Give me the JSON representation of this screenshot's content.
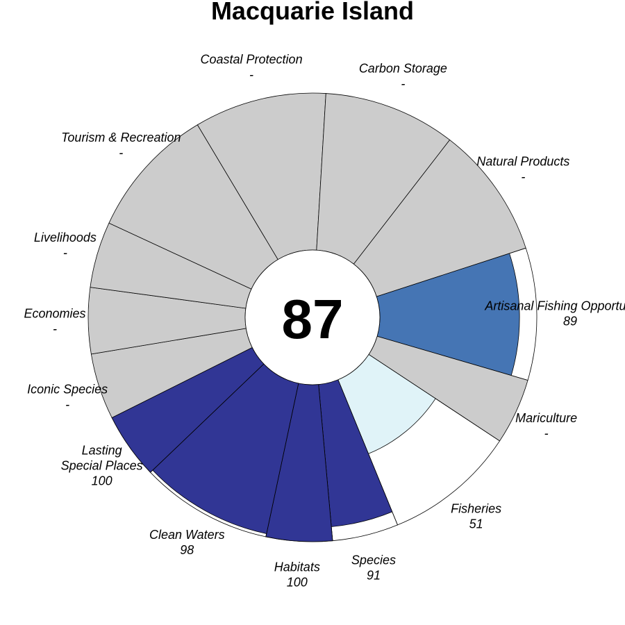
{
  "chart_data": {
    "type": "flower",
    "title": "Macquarie Island",
    "center_score": "87",
    "max_value": 100,
    "petals": [
      {
        "name": "Artisanal Fishing Opportunities",
        "value_label": "89",
        "value": 89,
        "weight": 1,
        "color": "#4575b4"
      },
      {
        "name": "Mariculture",
        "value_label": "-",
        "value": null,
        "weight": 0.5,
        "color": "#74add1"
      },
      {
        "name": "Fisheries",
        "value_label": "51",
        "value": 51,
        "weight": 1,
        "color": "#e0f3f8"
      },
      {
        "name": "Species",
        "value_label": "91",
        "value": 91,
        "weight": 0.5,
        "color": "#313695"
      },
      {
        "name": "Habitats",
        "value_label": "100",
        "value": 100,
        "weight": 0.5,
        "color": "#313695"
      },
      {
        "name": "Clean Waters",
        "value_label": "98",
        "value": 98,
        "weight": 1,
        "color": "#313695"
      },
      {
        "name": "Lasting Special Places",
        "value_label": "100",
        "value": 100,
        "weight": 0.5,
        "color": "#313695"
      },
      {
        "name": "Iconic Species",
        "value_label": "-",
        "value": null,
        "weight": 0.5,
        "color": "#cccccc"
      },
      {
        "name": "Economies",
        "value_label": "-",
        "value": null,
        "weight": 0.5,
        "color": "#cccccc"
      },
      {
        "name": "Livelihoods",
        "value_label": "-",
        "value": null,
        "weight": 0.5,
        "color": "#cccccc"
      },
      {
        "name": "Tourism & Recreation",
        "value_label": "-",
        "value": null,
        "weight": 1,
        "color": "#cccccc"
      },
      {
        "name": "Coastal Protection",
        "value_label": "-",
        "value": null,
        "weight": 1,
        "color": "#cccccc"
      },
      {
        "name": "Carbon Storage",
        "value_label": "-",
        "value": null,
        "weight": 1,
        "color": "#cccccc"
      },
      {
        "name": "Natural Products",
        "value_label": "-",
        "value": null,
        "weight": 1,
        "color": "#cccccc"
      }
    ],
    "missing_color": "#cccccc"
  }
}
